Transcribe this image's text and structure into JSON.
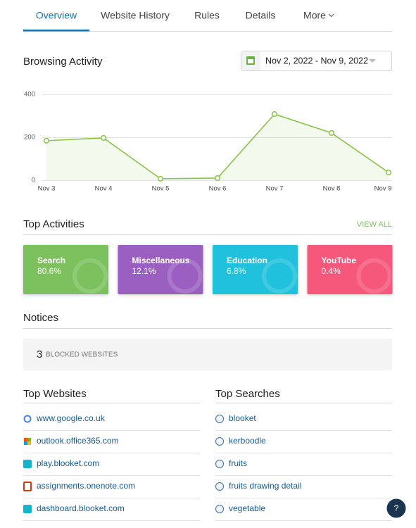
{
  "tabs": [
    "Overview",
    "Website History",
    "Rules",
    "Details",
    "More"
  ],
  "browsing_activity": {
    "title": "Browsing Activity",
    "date_range": "Nov 2, 2022 - Nov 9, 2022",
    "chart": {
      "type": "line",
      "x": [
        "Nov 3",
        "Nov 4",
        "Nov 5",
        "Nov 6",
        "Nov 7",
        "Nov 8",
        "Nov 9"
      ],
      "values": [
        184,
        197,
        7,
        10,
        308,
        220,
        36
      ],
      "ylim": [
        0,
        400
      ],
      "yticks": [
        0,
        200,
        400
      ],
      "color": "#8bc34a",
      "grid": true
    }
  },
  "top_activities": {
    "title": "Top Activities",
    "view_all": "VIEW ALL",
    "cards": [
      {
        "name": "Search",
        "share": "80.6%",
        "color": "#7cc15e"
      },
      {
        "name": "Miscellaneous",
        "share": "12.1%",
        "color": "#9a5fc1"
      },
      {
        "name": "Education",
        "share": "6.8%",
        "color": "#1fc1dc"
      },
      {
        "name": "YouTube",
        "share": "0.4%",
        "color": "#f5587b"
      }
    ]
  },
  "notices": {
    "title": "Notices",
    "count": 3,
    "label": "BLOCKED WEBSITES"
  },
  "top_websites": {
    "title": "Top Websites",
    "items": [
      "www.google.co.uk",
      "outlook.office365.com",
      "play.blooket.com",
      "assignments.onenote.com",
      "dashboard.blooket.com"
    ]
  },
  "top_searches": {
    "title": "Top Searches",
    "items": [
      "blooket",
      "kerboodle",
      "fruits",
      "fruits drawing detail",
      "vegetable"
    ]
  },
  "help": "?"
}
